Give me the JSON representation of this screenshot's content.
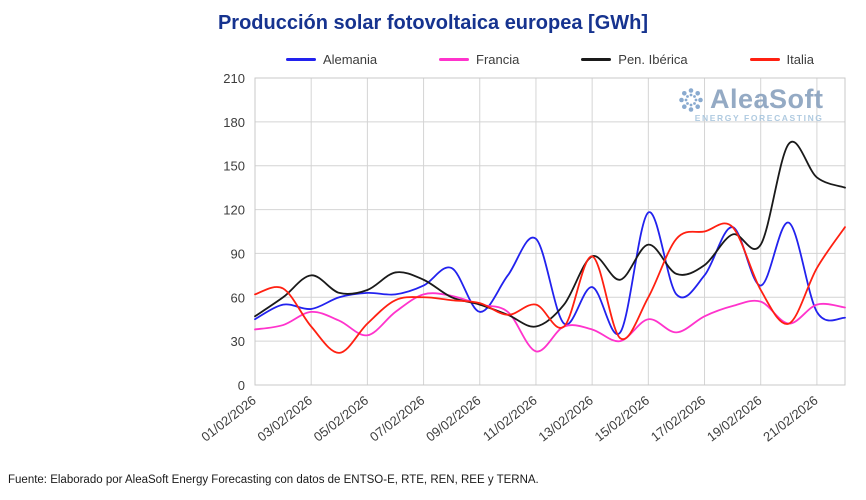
{
  "page": {
    "title": "Producción solar fotovoltaica europea [GWh]",
    "source": "Fuente: Elaborado por AleaSoft Energy Forecasting con datos de ENTSO-E, RTE, REN, REE y TERNA.",
    "watermark": {
      "brand": "AleaSoft",
      "tagline": "ENERGY FORECASTING"
    }
  },
  "chart_data": {
    "type": "line",
    "title": "Producción solar fotovoltaica europea [GWh]",
    "xlabel": "",
    "ylabel": "",
    "ylim": [
      0,
      210
    ],
    "yticks": [
      0,
      30,
      60,
      90,
      120,
      150,
      180,
      210
    ],
    "grid": true,
    "legend_position": "top",
    "x_labels": [
      "01/02/2026",
      "03/02/2026",
      "05/02/2026",
      "07/02/2026",
      "09/02/2026",
      "11/02/2026",
      "13/02/2026",
      "15/02/2026",
      "17/02/2026",
      "19/02/2026",
      "21/02/2026"
    ],
    "x_label_every_days": 2,
    "series": [
      {
        "name": "Alemania",
        "color": "#2222ee",
        "values": [
          45,
          55,
          52,
          60,
          63,
          62,
          68,
          80,
          50,
          75,
          100,
          42,
          67,
          36,
          118,
          62,
          75,
          108,
          68,
          111,
          50,
          46
        ]
      },
      {
        "name": "Francia",
        "color": "#ff33cc",
        "values": [
          38,
          41,
          50,
          44,
          34,
          50,
          62,
          61,
          55,
          50,
          23,
          40,
          38,
          30,
          45,
          36,
          47,
          54,
          57,
          42,
          55,
          53
        ]
      },
      {
        "name": "Pen. Ibérica",
        "color": "#1a1a1a",
        "values": [
          47,
          60,
          75,
          63,
          65,
          77,
          72,
          60,
          55,
          48,
          40,
          55,
          88,
          72,
          96,
          76,
          82,
          103,
          96,
          165,
          142,
          135
        ]
      },
      {
        "name": "Italia",
        "color": "#ff2011",
        "values": [
          62,
          66,
          40,
          22,
          42,
          58,
          60,
          58,
          56,
          48,
          55,
          40,
          88,
          32,
          60,
          100,
          105,
          108,
          65,
          42,
          80,
          108
        ]
      }
    ]
  }
}
